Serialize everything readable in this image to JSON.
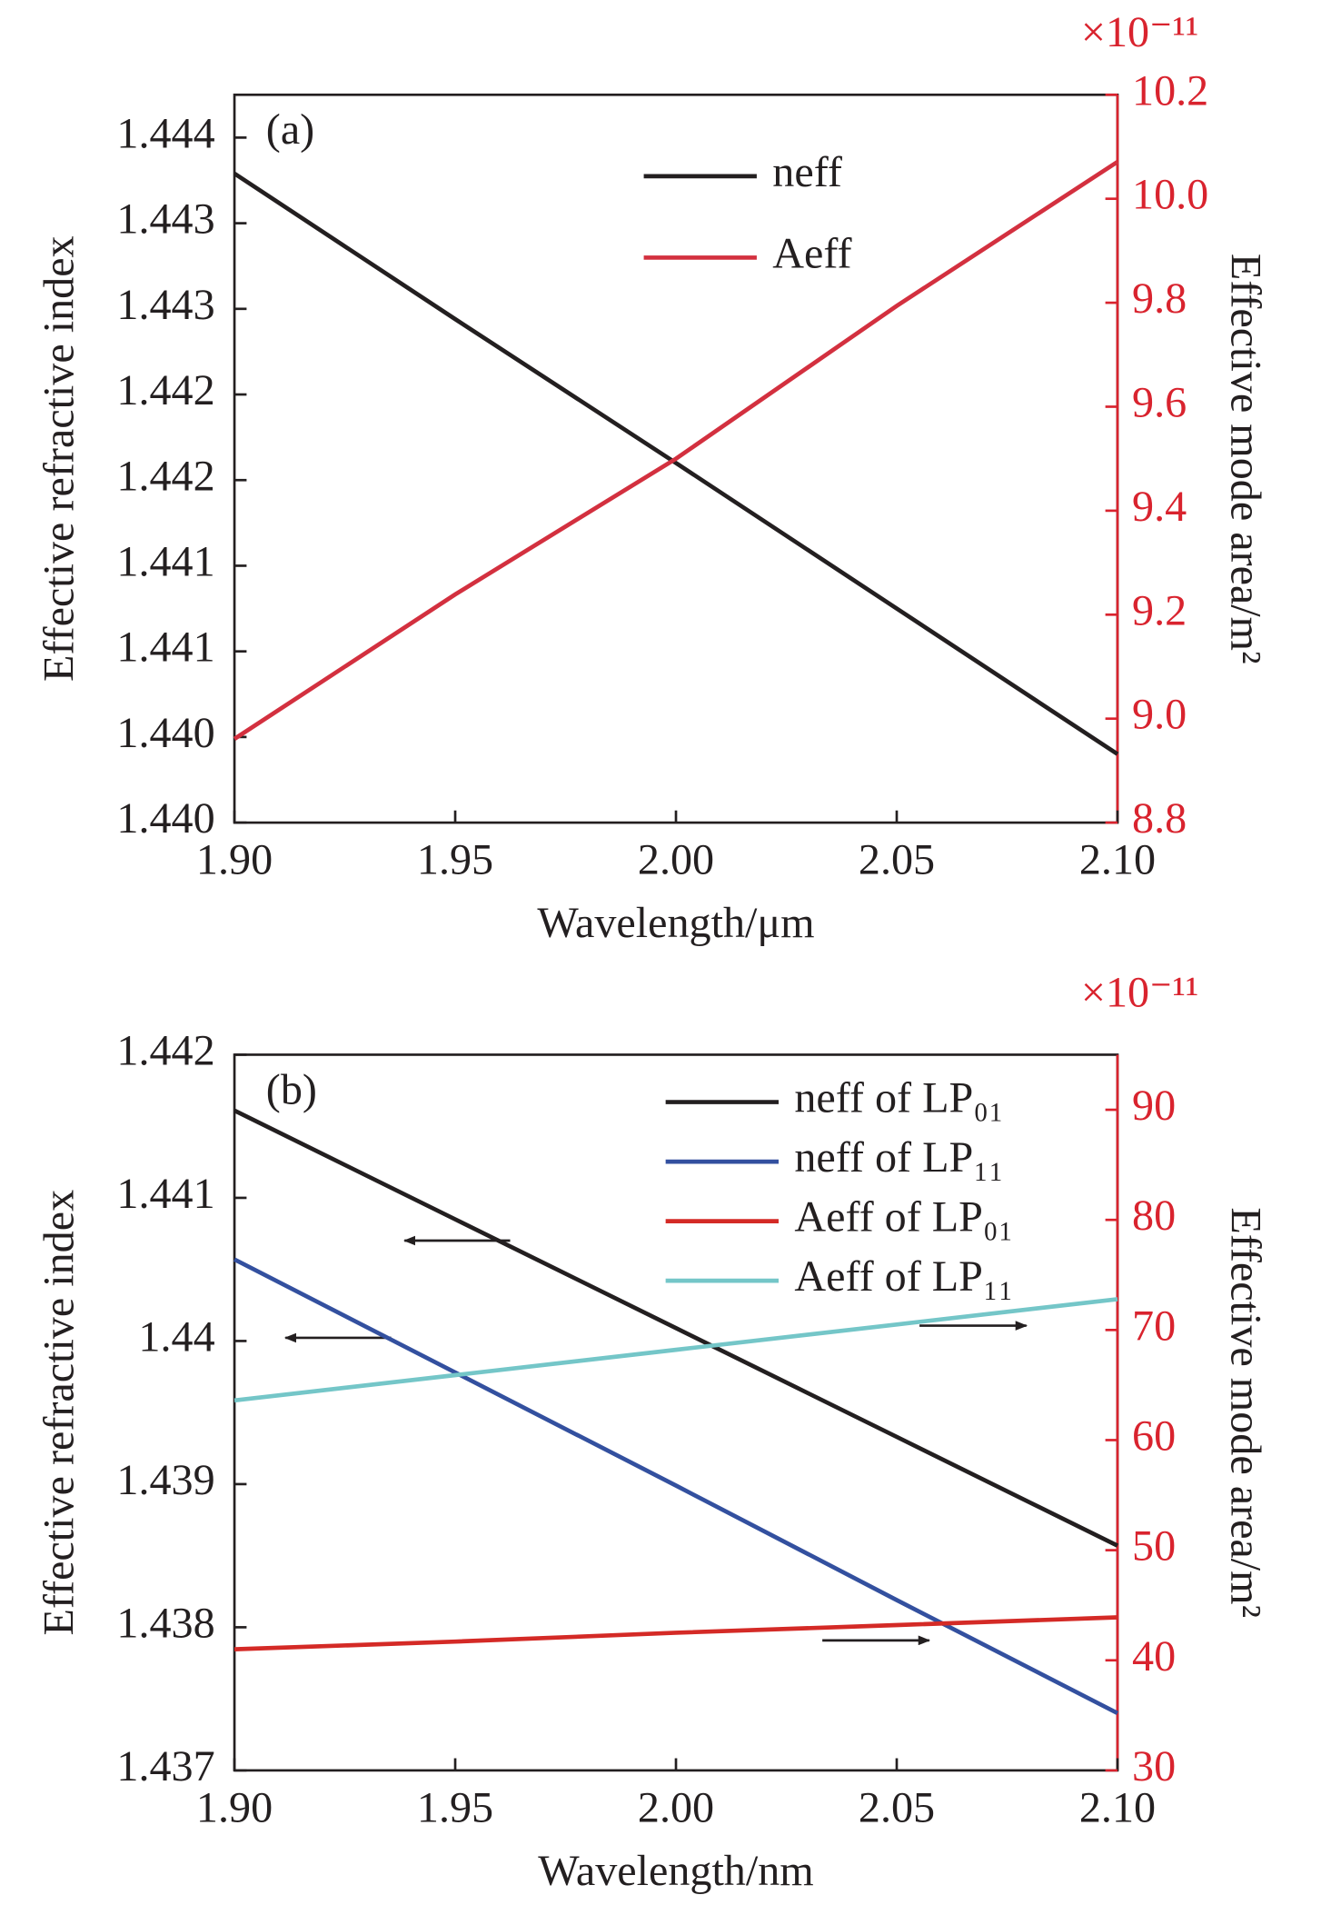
{
  "chart_data": [
    {
      "type": "line",
      "panel_label": "(a)",
      "xlabel": "Wavelength/μm",
      "ylabel": "Effective refractive index",
      "y2label": "Effective mode area/m²",
      "y2_exponent": "×10⁻¹¹",
      "x": [
        1.9,
        1.95,
        2.0,
        2.05,
        2.1
      ],
      "xlim": [
        1.9,
        2.1
      ],
      "xticks": [
        {
          "value": 1.9,
          "label": "1.90"
        },
        {
          "value": 1.95,
          "label": "1.95"
        },
        {
          "value": 2.0,
          "label": "2.00"
        },
        {
          "value": 2.05,
          "label": "2.05"
        },
        {
          "value": 2.1,
          "label": "2.10"
        }
      ],
      "ylim": [
        1.44,
        1.44425
      ],
      "yticks": [
        {
          "value": 1.44,
          "label": "1.440"
        },
        {
          "value": 1.4405,
          "label": "1.440"
        },
        {
          "value": 1.441,
          "label": "1.441"
        },
        {
          "value": 1.4415,
          "label": "1.441"
        },
        {
          "value": 1.442,
          "label": "1.442"
        },
        {
          "value": 1.4425,
          "label": "1.442"
        },
        {
          "value": 1.443,
          "label": "1.443"
        },
        {
          "value": 1.4435,
          "label": "1.443"
        },
        {
          "value": 1.444,
          "label": "1.444"
        }
      ],
      "y2lim": [
        8.8,
        10.2
      ],
      "y2ticks": [
        8.8,
        {
          "value": 9.0,
          "label": "9.0"
        },
        9.2,
        9.4,
        9.6,
        9.8,
        {
          "value": 10.0,
          "label": "10.0"
        },
        10.2
      ],
      "legend": "upper center",
      "series": [
        {
          "name": "neff",
          "color": "#231f20",
          "values": [
            1.44379,
            1.44294,
            1.4421,
            1.44125,
            1.4404
          ]
        },
        {
          "name": "Aeff",
          "color": "#d3303f",
          "axis": "y2",
          "values": [
            8.961,
            9.239,
            9.5,
            9.794,
            10.071
          ]
        }
      ]
    },
    {
      "type": "line",
      "panel_label": "(b)",
      "xlabel": "Wavelength/nm",
      "ylabel": "Effective refractive index",
      "y2label": "Effective mode area/m²",
      "y2_exponent": "×10⁻¹¹",
      "x": [
        1.9,
        1.95,
        2.0,
        2.05,
        2.1
      ],
      "xlim": [
        1.9,
        2.1
      ],
      "xticks": [
        {
          "value": 1.9,
          "label": "1.90"
        },
        {
          "value": 1.95,
          "label": "1.95"
        },
        {
          "value": 2.0,
          "label": "2.00"
        },
        {
          "value": 2.05,
          "label": "2.05"
        },
        {
          "value": 2.1,
          "label": "2.10"
        }
      ],
      "ylim": [
        1.437,
        1.442
      ],
      "yticks": [
        1.437,
        1.438,
        1.439,
        1.44,
        1.441,
        1.442
      ],
      "y2lim": [
        30,
        95
      ],
      "y2ticks": [
        30,
        40,
        50,
        60,
        70,
        80,
        90
      ],
      "legend": "upper right",
      "series": [
        {
          "name": "neff of LP₀₁",
          "color": "#231f20",
          "values": [
            1.44161,
            1.44085,
            1.44009,
            1.43933,
            1.43857
          ]
        },
        {
          "name": "neff of LP₁₁",
          "color": "#33509f",
          "values": [
            1.44057,
            1.43978,
            1.43899,
            1.43819,
            1.4374
          ]
        },
        {
          "name": "Aeff of LP₀₁",
          "color": "#d42a26",
          "axis": "y2",
          "values": [
            41.0,
            41.7,
            42.5,
            43.2,
            43.9
          ]
        },
        {
          "name": "Aeff of LP₁₁",
          "color": "#74c6c8",
          "axis": "y2",
          "values": [
            63.6,
            65.9,
            68.2,
            70.5,
            72.8
          ]
        }
      ]
    }
  ]
}
